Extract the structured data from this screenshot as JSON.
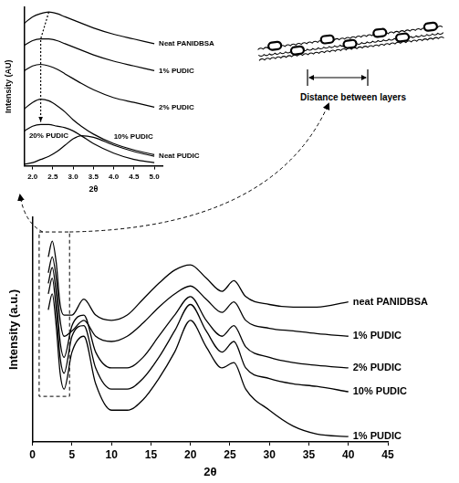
{
  "chart_data": [
    {
      "type": "line",
      "x": [
        2,
        2.5,
        3,
        3.5,
        4,
        5,
        6.5,
        8,
        10,
        12,
        14,
        16,
        18,
        20,
        22,
        24,
        25.5,
        27,
        30,
        33,
        36,
        40
      ],
      "series": [
        {
          "name": "neat PANIDBSA",
          "color": "#000000",
          "values": [
            70,
            76,
            68,
            52,
            48,
            48,
            54,
            48,
            46,
            48,
            54,
            60,
            65,
            67,
            62,
            57,
            61,
            55,
            52,
            51,
            51,
            53
          ]
        },
        {
          "name": "1% PUDIC",
          "color": "#000000",
          "values": [
            64,
            70,
            62,
            46,
            40,
            42,
            46,
            40,
            38,
            40,
            45,
            51,
            56,
            59,
            54,
            49,
            53,
            46,
            43,
            42,
            41,
            40
          ]
        },
        {
          "name": "2% PUDIC",
          "color": "#000000",
          "values": [
            60,
            66,
            56,
            38,
            32,
            44,
            48,
            34,
            28,
            28,
            32,
            40,
            48,
            55,
            46,
            40,
            44,
            36,
            32,
            30,
            29,
            28
          ]
        },
        {
          "name": "10% PUDIC",
          "color": "#000000",
          "values": [
            56,
            62,
            50,
            32,
            26,
            40,
            44,
            28,
            20,
            20,
            24,
            32,
            42,
            52,
            42,
            34,
            38,
            28,
            24,
            22,
            21,
            19
          ]
        },
        {
          "name": "1% PUDIC",
          "color": "#000000",
          "values": [
            50,
            56,
            44,
            26,
            20,
            34,
            40,
            22,
            12,
            12,
            16,
            24,
            34,
            46,
            36,
            28,
            30,
            20,
            12,
            6,
            3,
            2
          ]
        }
      ],
      "xlim": [
        0,
        45
      ],
      "xticks": [
        0,
        5,
        10,
        15,
        20,
        25,
        30,
        35,
        40,
        45
      ],
      "ylim": [
        0,
        85
      ],
      "x_label": "2θ",
      "y_label": "Intensity (a.u.)",
      "tick_labels": "x",
      "grid": false
    },
    {
      "type": "line",
      "x": [
        1.8,
        2.0,
        2.2,
        2.4,
        2.6,
        2.8,
        3.0,
        3.2,
        3.5,
        4.0,
        4.5,
        5.0
      ],
      "series": [
        {
          "name": "Neat PANIDBSA",
          "color": "#000000",
          "values": [
            90,
            94,
            96,
            97,
            96,
            94,
            92,
            90,
            87,
            83,
            80,
            77
          ]
        },
        {
          "name": "1% PUDIC",
          "color": "#000000",
          "values": [
            76,
            79,
            80,
            80,
            79,
            77,
            75,
            73,
            70,
            66,
            63,
            60
          ]
        },
        {
          "name": "2% PUDIC",
          "color": "#000000",
          "values": [
            60,
            63,
            64,
            63,
            61,
            58,
            55,
            52,
            48,
            43,
            40,
            37
          ]
        },
        {
          "name": "10% PUDIC",
          "color": "#000000",
          "values": [
            36,
            40,
            42,
            41,
            38,
            34,
            29,
            25,
            20,
            14,
            10,
            7
          ]
        },
        {
          "name": "20% PUDIC",
          "color": "#000000",
          "values": [
            22,
            25,
            26,
            26,
            25,
            24,
            22,
            19,
            14,
            8,
            4,
            2
          ]
        },
        {
          "name": "Neat PUDIC",
          "color": "#000000",
          "values": [
            1,
            2,
            4,
            6,
            9,
            13,
            17,
            19,
            18,
            13,
            9,
            6
          ]
        }
      ],
      "xlim": [
        1.8,
        5.2
      ],
      "xticks": [
        {
          "value": 2,
          "label": "2.0"
        },
        2.5,
        {
          "value": 3,
          "label": "3.0"
        },
        3.5,
        {
          "value": 4,
          "label": "4.0"
        },
        4.5,
        {
          "value": 5,
          "label": "5.0"
        }
      ],
      "ylim": [
        0,
        100
      ],
      "x_label": "2θ",
      "y_label": "Intensity (AU)",
      "tick_labels": "x",
      "grid": false
    }
  ],
  "diagram": {
    "label": "Distance between layers"
  }
}
